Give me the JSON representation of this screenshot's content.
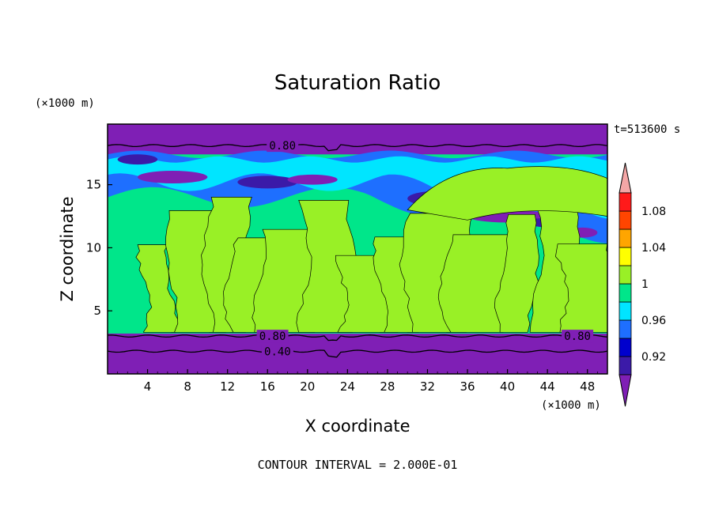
{
  "chart_data": {
    "type": "heatmap",
    "title": "Saturation Ratio",
    "xlabel": "X coordinate",
    "ylabel": "Z coordinate",
    "x_unit_label": "(×1000 m)",
    "y_unit_label": "(×1000 m)",
    "time_label": "t=513600 s",
    "footer": "CONTOUR INTERVAL = 2.000E-01",
    "xlim": [
      0,
      50
    ],
    "ylim": [
      0,
      19.8
    ],
    "x_ticks": [
      4,
      8,
      12,
      16,
      20,
      24,
      28,
      32,
      36,
      40,
      44,
      48
    ],
    "y_ticks": [
      5,
      10,
      15
    ],
    "colorbar": {
      "levels": [
        0.9,
        0.92,
        0.94,
        0.96,
        0.98,
        1.0,
        1.02,
        1.04,
        1.06,
        1.08,
        1.1
      ],
      "colors": [
        "#7f1fb5",
        "#3b1aa8",
        "#0000cd",
        "#1e6fff",
        "#00e5ff",
        "#00e68a",
        "#99f026",
        "#ffff00",
        "#ffa500",
        "#ff4500",
        "#ff1a1a",
        "#f4a6a6"
      ],
      "labels": [
        {
          "value": 0.92,
          "text": "0.92"
        },
        {
          "value": 0.96,
          "text": "0.96"
        },
        {
          "value": 1.0,
          "text": "1"
        },
        {
          "value": 1.04,
          "text": "1.04"
        },
        {
          "value": 1.08,
          "text": "1.08"
        }
      ]
    },
    "bands": [
      {
        "name": "dry-lower-layer",
        "z_bottom": 0.0,
        "z_top": 3.2,
        "value": 0.8
      },
      {
        "name": "moist-troposphere",
        "z_bottom": 3.2,
        "z_top": 16.4,
        "value": 0.99
      },
      {
        "name": "upper-mixed-layer",
        "z_bottom": 13.8,
        "z_top": 17.4,
        "value": 0.95
      },
      {
        "name": "dry-upper-layer",
        "z_bottom": 17.4,
        "z_top": 19.8,
        "value": 0.8
      }
    ],
    "contour_lines": [
      {
        "z": 18.1,
        "label": "0.80",
        "label_x": 17.5
      },
      {
        "z": 3.0,
        "label": "0.80",
        "label_x": 16.5
      },
      {
        "z": 3.0,
        "label": "0.80",
        "label_x": 47.0
      },
      {
        "z": 1.8,
        "label": "0.40",
        "label_x": 17.0
      }
    ]
  }
}
